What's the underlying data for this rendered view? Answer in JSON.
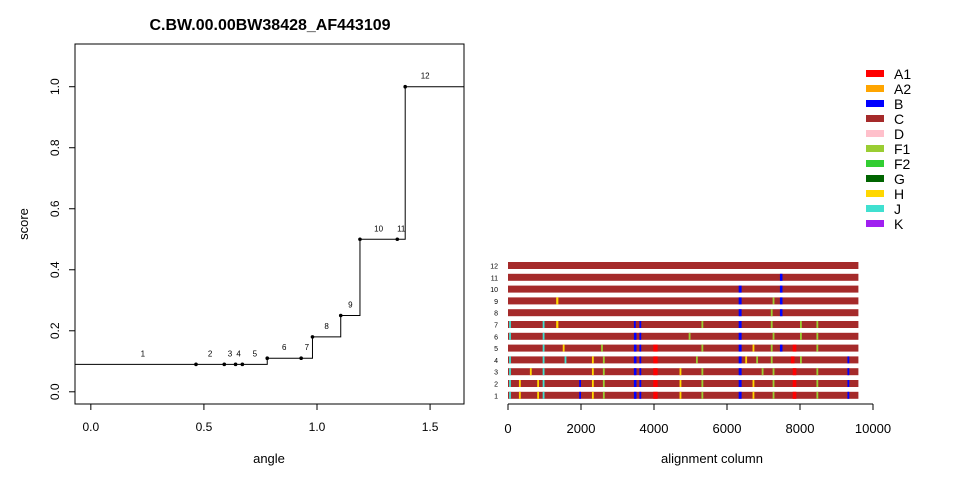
{
  "chart_data": [
    {
      "type": "line",
      "step": true,
      "title": "C.BW.00.00BW38428_AF443109",
      "xlabel": "angle",
      "ylabel": "score",
      "xlim": [
        -0.07,
        1.65
      ],
      "ylim": [
        -0.04,
        1.14
      ],
      "xticks": [
        "0.0",
        "0.5",
        "1.0",
        "1.5"
      ],
      "xtick_values": [
        0,
        0.5,
        1.0,
        1.5
      ],
      "yticks": [
        "0.0",
        "0.2",
        "0.4",
        "0.6",
        "0.8",
        "1.0"
      ],
      "ytick_values": [
        0,
        0.2,
        0.4,
        0.6,
        0.8,
        1.0
      ],
      "step_start": -0.07,
      "step_end": 1.65,
      "points": [
        {
          "label": "1",
          "x": -0.07,
          "y": 0.09,
          "dot": false
        },
        {
          "label": "2",
          "x": 0.465,
          "y": 0.09,
          "dot": true
        },
        {
          "label": "3",
          "x": 0.59,
          "y": 0.09,
          "dot": true
        },
        {
          "label": "4",
          "x": 0.64,
          "y": 0.09,
          "dot": true
        },
        {
          "label": "5",
          "x": 0.67,
          "y": 0.09,
          "dot": true
        },
        {
          "label": "6",
          "x": 0.78,
          "y": 0.11,
          "dot": true
        },
        {
          "label": "7",
          "x": 0.93,
          "y": 0.11,
          "dot": true
        },
        {
          "label": "8",
          "x": 0.98,
          "y": 0.18,
          "dot": true
        },
        {
          "label": "9",
          "x": 1.105,
          "y": 0.25,
          "dot": true
        },
        {
          "label": "10",
          "x": 1.19,
          "y": 0.5,
          "dot": true
        },
        {
          "label": "11",
          "x": 1.355,
          "y": 0.5,
          "dot": true
        },
        {
          "label": "12",
          "x": 1.39,
          "y": 1.0,
          "dot": true
        }
      ]
    },
    {
      "type": "heatmap",
      "xlabel": "alignment column",
      "xlim": [
        0,
        10000
      ],
      "xticks": [
        "0",
        "2000",
        "4000",
        "6000",
        "8000",
        "10000"
      ],
      "xtick_values": [
        0,
        2000,
        4000,
        6000,
        8000,
        10000
      ],
      "seq_length": 9600,
      "rows": [
        "1",
        "2",
        "3",
        "4",
        "5",
        "6",
        "7",
        "8",
        "9",
        "10",
        "11",
        "12"
      ],
      "base_subtype": "C",
      "legend": [
        {
          "label": "A1",
          "color": "#ff0000"
        },
        {
          "label": "A2",
          "color": "#ffa500"
        },
        {
          "label": "B",
          "color": "#0000ff"
        },
        {
          "label": "C",
          "color": "#a52a2a"
        },
        {
          "label": "D",
          "color": "#ffc0cb"
        },
        {
          "label": "F1",
          "color": "#9acd32"
        },
        {
          "label": "F2",
          "color": "#32cd32"
        },
        {
          "label": "G",
          "color": "#006400"
        },
        {
          "label": "H",
          "color": "#ffd700"
        },
        {
          "label": "J",
          "color": "#40e0d0"
        },
        {
          "label": "K",
          "color": "#a020f0"
        }
      ],
      "segments": [
        {
          "row": 11,
          "subtype": "B",
          "start": 7450,
          "end": 7520
        },
        {
          "row": 10,
          "subtype": "B",
          "start": 6320,
          "end": 6400
        },
        {
          "row": 10,
          "subtype": "B",
          "start": 7450,
          "end": 7520
        },
        {
          "row": 9,
          "subtype": "H",
          "start": 1320,
          "end": 1380
        },
        {
          "row": 9,
          "subtype": "B",
          "start": 6320,
          "end": 6400
        },
        {
          "row": 9,
          "subtype": "F1",
          "start": 7250,
          "end": 7300
        },
        {
          "row": 9,
          "subtype": "B",
          "start": 7450,
          "end": 7520
        },
        {
          "row": 8,
          "subtype": "B",
          "start": 6320,
          "end": 6400
        },
        {
          "row": 8,
          "subtype": "F1",
          "start": 7200,
          "end": 7250
        },
        {
          "row": 8,
          "subtype": "B",
          "start": 7450,
          "end": 7520
        },
        {
          "row": 7,
          "subtype": "J",
          "start": 30,
          "end": 80
        },
        {
          "row": 7,
          "subtype": "J",
          "start": 950,
          "end": 1000
        },
        {
          "row": 7,
          "subtype": "H",
          "start": 1320,
          "end": 1380
        },
        {
          "row": 7,
          "subtype": "B",
          "start": 3450,
          "end": 3500
        },
        {
          "row": 7,
          "subtype": "B",
          "start": 3600,
          "end": 3650
        },
        {
          "row": 7,
          "subtype": "F1",
          "start": 5300,
          "end": 5350
        },
        {
          "row": 7,
          "subtype": "B",
          "start": 6320,
          "end": 6400
        },
        {
          "row": 7,
          "subtype": "F1",
          "start": 7200,
          "end": 7250
        },
        {
          "row": 7,
          "subtype": "F1",
          "start": 8000,
          "end": 8050
        },
        {
          "row": 7,
          "subtype": "F1",
          "start": 8450,
          "end": 8500
        },
        {
          "row": 6,
          "subtype": "J",
          "start": 30,
          "end": 80
        },
        {
          "row": 6,
          "subtype": "J",
          "start": 950,
          "end": 1000
        },
        {
          "row": 6,
          "subtype": "B",
          "start": 3450,
          "end": 3520
        },
        {
          "row": 6,
          "subtype": "B",
          "start": 3600,
          "end": 3650
        },
        {
          "row": 6,
          "subtype": "F1",
          "start": 4950,
          "end": 5000
        },
        {
          "row": 6,
          "subtype": "B",
          "start": 6320,
          "end": 6400
        },
        {
          "row": 6,
          "subtype": "F1",
          "start": 7250,
          "end": 7300
        },
        {
          "row": 6,
          "subtype": "F1",
          "start": 8000,
          "end": 8050
        },
        {
          "row": 6,
          "subtype": "F1",
          "start": 8450,
          "end": 8500
        },
        {
          "row": 5,
          "subtype": "J",
          "start": 950,
          "end": 1000
        },
        {
          "row": 5,
          "subtype": "H",
          "start": 1500,
          "end": 1550
        },
        {
          "row": 5,
          "subtype": "F1",
          "start": 2550,
          "end": 2600
        },
        {
          "row": 5,
          "subtype": "B",
          "start": 3450,
          "end": 3520
        },
        {
          "row": 5,
          "subtype": "B",
          "start": 3600,
          "end": 3650
        },
        {
          "row": 5,
          "subtype": "A1",
          "start": 3980,
          "end": 4100
        },
        {
          "row": 5,
          "subtype": "F1",
          "start": 5300,
          "end": 5350
        },
        {
          "row": 5,
          "subtype": "B",
          "start": 6320,
          "end": 6400
        },
        {
          "row": 5,
          "subtype": "H",
          "start": 6700,
          "end": 6750
        },
        {
          "row": 5,
          "subtype": "F1",
          "start": 7200,
          "end": 7250
        },
        {
          "row": 5,
          "subtype": "B",
          "start": 7450,
          "end": 7520
        },
        {
          "row": 5,
          "subtype": "A1",
          "start": 7800,
          "end": 7900
        },
        {
          "row": 5,
          "subtype": "F1",
          "start": 8450,
          "end": 8500
        },
        {
          "row": 4,
          "subtype": "J",
          "start": 30,
          "end": 80
        },
        {
          "row": 4,
          "subtype": "J",
          "start": 950,
          "end": 1000
        },
        {
          "row": 4,
          "subtype": "J",
          "start": 1550,
          "end": 1600
        },
        {
          "row": 4,
          "subtype": "H",
          "start": 2300,
          "end": 2350
        },
        {
          "row": 4,
          "subtype": "F1",
          "start": 2600,
          "end": 2650
        },
        {
          "row": 4,
          "subtype": "B",
          "start": 3450,
          "end": 3520
        },
        {
          "row": 4,
          "subtype": "B",
          "start": 3600,
          "end": 3650
        },
        {
          "row": 4,
          "subtype": "A1",
          "start": 3980,
          "end": 4100
        },
        {
          "row": 4,
          "subtype": "F1",
          "start": 5150,
          "end": 5200
        },
        {
          "row": 4,
          "subtype": "B",
          "start": 6320,
          "end": 6400
        },
        {
          "row": 4,
          "subtype": "H",
          "start": 6500,
          "end": 6550
        },
        {
          "row": 4,
          "subtype": "F1",
          "start": 6800,
          "end": 6850
        },
        {
          "row": 4,
          "subtype": "F1",
          "start": 7200,
          "end": 7250
        },
        {
          "row": 4,
          "subtype": "A1",
          "start": 7750,
          "end": 7850
        },
        {
          "row": 4,
          "subtype": "F1",
          "start": 8000,
          "end": 8050
        },
        {
          "row": 4,
          "subtype": "B",
          "start": 9300,
          "end": 9350
        },
        {
          "row": 3,
          "subtype": "J",
          "start": 30,
          "end": 80
        },
        {
          "row": 3,
          "subtype": "H",
          "start": 600,
          "end": 650
        },
        {
          "row": 3,
          "subtype": "J",
          "start": 950,
          "end": 1000
        },
        {
          "row": 3,
          "subtype": "H",
          "start": 2300,
          "end": 2350
        },
        {
          "row": 3,
          "subtype": "F1",
          "start": 2600,
          "end": 2650
        },
        {
          "row": 3,
          "subtype": "B",
          "start": 3450,
          "end": 3520
        },
        {
          "row": 3,
          "subtype": "B",
          "start": 3600,
          "end": 3650
        },
        {
          "row": 3,
          "subtype": "A1",
          "start": 3980,
          "end": 4100
        },
        {
          "row": 3,
          "subtype": "H",
          "start": 4700,
          "end": 4750
        },
        {
          "row": 3,
          "subtype": "F1",
          "start": 5300,
          "end": 5350
        },
        {
          "row": 3,
          "subtype": "B",
          "start": 6320,
          "end": 6400
        },
        {
          "row": 3,
          "subtype": "F1",
          "start": 6950,
          "end": 7000
        },
        {
          "row": 3,
          "subtype": "F1",
          "start": 7250,
          "end": 7300
        },
        {
          "row": 3,
          "subtype": "A1",
          "start": 7800,
          "end": 7900
        },
        {
          "row": 3,
          "subtype": "F1",
          "start": 8450,
          "end": 8500
        },
        {
          "row": 3,
          "subtype": "B",
          "start": 9300,
          "end": 9350
        },
        {
          "row": 2,
          "subtype": "J",
          "start": 30,
          "end": 80
        },
        {
          "row": 2,
          "subtype": "H",
          "start": 300,
          "end": 350
        },
        {
          "row": 2,
          "subtype": "H",
          "start": 800,
          "end": 850
        },
        {
          "row": 2,
          "subtype": "J",
          "start": 950,
          "end": 1000
        },
        {
          "row": 2,
          "subtype": "B",
          "start": 1950,
          "end": 2000
        },
        {
          "row": 2,
          "subtype": "H",
          "start": 2300,
          "end": 2350
        },
        {
          "row": 2,
          "subtype": "F1",
          "start": 2600,
          "end": 2650
        },
        {
          "row": 2,
          "subtype": "B",
          "start": 3450,
          "end": 3520
        },
        {
          "row": 2,
          "subtype": "B",
          "start": 3600,
          "end": 3650
        },
        {
          "row": 2,
          "subtype": "A1",
          "start": 3980,
          "end": 4100
        },
        {
          "row": 2,
          "subtype": "H",
          "start": 4700,
          "end": 4750
        },
        {
          "row": 2,
          "subtype": "F1",
          "start": 5300,
          "end": 5350
        },
        {
          "row": 2,
          "subtype": "B",
          "start": 6320,
          "end": 6400
        },
        {
          "row": 2,
          "subtype": "H",
          "start": 6700,
          "end": 6750
        },
        {
          "row": 2,
          "subtype": "F1",
          "start": 7250,
          "end": 7300
        },
        {
          "row": 2,
          "subtype": "A1",
          "start": 7800,
          "end": 7900
        },
        {
          "row": 2,
          "subtype": "F1",
          "start": 8450,
          "end": 8500
        },
        {
          "row": 2,
          "subtype": "B",
          "start": 9300,
          "end": 9350
        },
        {
          "row": 1,
          "subtype": "J",
          "start": 30,
          "end": 80
        },
        {
          "row": 1,
          "subtype": "H",
          "start": 300,
          "end": 350
        },
        {
          "row": 1,
          "subtype": "H",
          "start": 800,
          "end": 850
        },
        {
          "row": 1,
          "subtype": "J",
          "start": 950,
          "end": 1000
        },
        {
          "row": 1,
          "subtype": "B",
          "start": 1950,
          "end": 2000
        },
        {
          "row": 1,
          "subtype": "H",
          "start": 2300,
          "end": 2350
        },
        {
          "row": 1,
          "subtype": "F1",
          "start": 2600,
          "end": 2650
        },
        {
          "row": 1,
          "subtype": "B",
          "start": 3450,
          "end": 3520
        },
        {
          "row": 1,
          "subtype": "B",
          "start": 3600,
          "end": 3650
        },
        {
          "row": 1,
          "subtype": "A1",
          "start": 3980,
          "end": 4100
        },
        {
          "row": 1,
          "subtype": "H",
          "start": 4700,
          "end": 4750
        },
        {
          "row": 1,
          "subtype": "F1",
          "start": 5300,
          "end": 5350
        },
        {
          "row": 1,
          "subtype": "B",
          "start": 6320,
          "end": 6400
        },
        {
          "row": 1,
          "subtype": "H",
          "start": 6700,
          "end": 6750
        },
        {
          "row": 1,
          "subtype": "F1",
          "start": 7250,
          "end": 7300
        },
        {
          "row": 1,
          "subtype": "A1",
          "start": 7800,
          "end": 7900
        },
        {
          "row": 1,
          "subtype": "F1",
          "start": 8450,
          "end": 8500
        },
        {
          "row": 1,
          "subtype": "B",
          "start": 9300,
          "end": 9350
        }
      ]
    }
  ]
}
